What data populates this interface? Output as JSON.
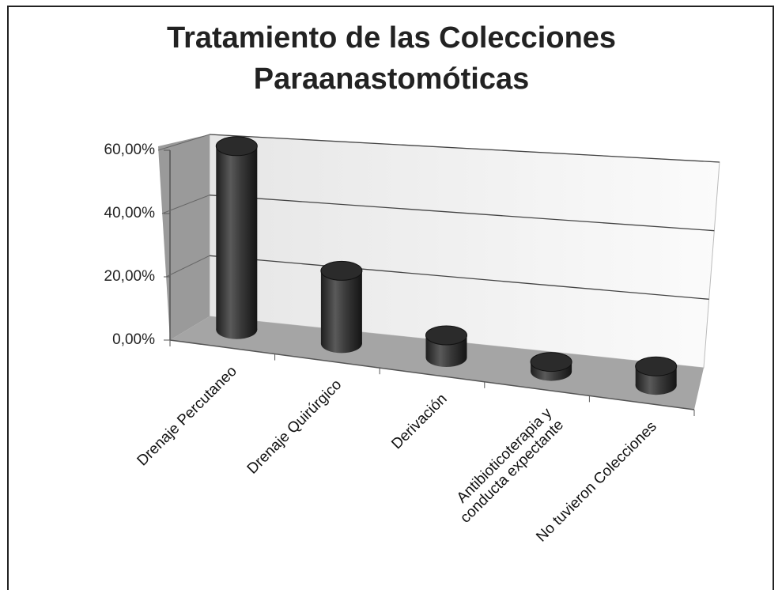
{
  "chart_data": {
    "type": "bar3d",
    "title": "Tratamiento de las Colecciones\nParaanastomóticas",
    "categories": [
      "Drenaje Percutaneo",
      "Drenaje Quirúrgico",
      "Derivación",
      "Antibioticoterapia y\nconducta expectante",
      "No tuvieron Colecciones"
    ],
    "values": [
      58,
      23,
      7,
      3,
      6
    ],
    "color": "#3a3a3a",
    "ylim": [
      0,
      60
    ],
    "yticks": [
      {
        "value": 0,
        "label": "0,00%"
      },
      {
        "value": 20,
        "label": "20,00%"
      },
      {
        "value": 40,
        "label": "40,00%"
      },
      {
        "value": 60,
        "label": "60,00%"
      }
    ],
    "grid": true
  }
}
